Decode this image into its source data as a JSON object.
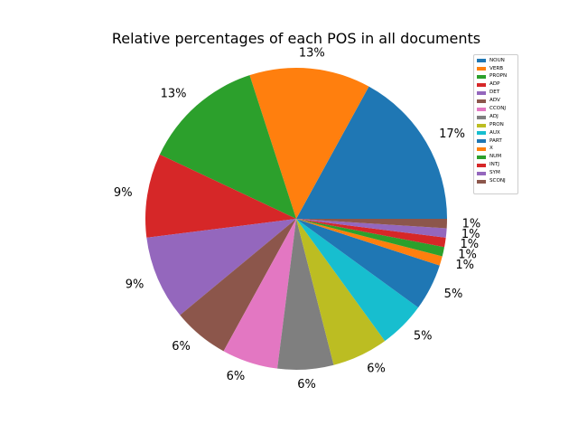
{
  "chart_data": {
    "type": "pie",
    "title": "Relative percentages of each POS in all documents",
    "slices": [
      {
        "label": "NOUN",
        "value": 17,
        "pct_label": "17%",
        "color": "#1f77b4"
      },
      {
        "label": "VERB",
        "value": 13,
        "pct_label": "13%",
        "color": "#ff7f0e"
      },
      {
        "label": "PROPN",
        "value": 13,
        "pct_label": "13%",
        "color": "#2ca02c"
      },
      {
        "label": "ADP",
        "value": 9,
        "pct_label": "9%",
        "color": "#d62728"
      },
      {
        "label": "DET",
        "value": 9,
        "pct_label": "9%",
        "color": "#9467bd"
      },
      {
        "label": "ADV",
        "value": 6,
        "pct_label": "6%",
        "color": "#8c564b"
      },
      {
        "label": "CCONJ",
        "value": 6,
        "pct_label": "6%",
        "color": "#e377c2"
      },
      {
        "label": "ADJ",
        "value": 6,
        "pct_label": "6%",
        "color": "#7f7f7f"
      },
      {
        "label": "PRON",
        "value": 6,
        "pct_label": "6%",
        "color": "#bcbd22"
      },
      {
        "label": "AUX",
        "value": 5,
        "pct_label": "5%",
        "color": "#17becf"
      },
      {
        "label": "PART",
        "value": 5,
        "pct_label": "5%",
        "color": "#1f77b4"
      },
      {
        "label": "X",
        "value": 1,
        "pct_label": "1%",
        "color": "#ff7f0e"
      },
      {
        "label": "NUM",
        "value": 1,
        "pct_label": "1%",
        "color": "#2ca02c"
      },
      {
        "label": "INTJ",
        "value": 1,
        "pct_label": "1%",
        "color": "#d62728"
      },
      {
        "label": "SYM",
        "value": 1,
        "pct_label": "1%",
        "color": "#9467bd"
      },
      {
        "label": "SCONJ",
        "value": 1,
        "pct_label": "1%",
        "color": "#8c564b"
      }
    ],
    "start_angle_deg": 0,
    "direction": "counterclockwise",
    "legend_position": "upper-right"
  }
}
